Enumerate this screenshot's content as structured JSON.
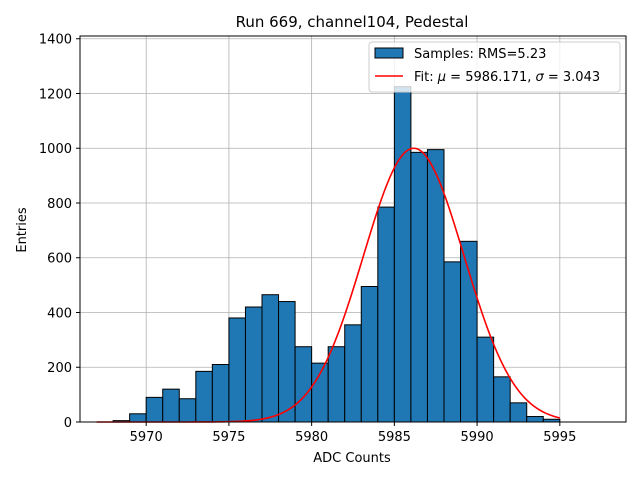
{
  "chart_data": {
    "type": "bar",
    "title": "Run 669, channel104, Pedestal",
    "xlabel": "ADC Counts",
    "ylabel": "Entries",
    "xlim": [
      5966,
      5999
    ],
    "ylim": [
      0,
      1410
    ],
    "x_ticks": [
      "5970",
      "5975",
      "5980",
      "5985",
      "5990",
      "5995"
    ],
    "y_ticks": [
      "0",
      "200",
      "400",
      "600",
      "800",
      "1000",
      "1200",
      "1400"
    ],
    "grid": true,
    "legend_position": "top-right",
    "bin_edges": [
      5967,
      5968,
      5969,
      5970,
      5971,
      5972,
      5973,
      5974,
      5975,
      5976,
      5977,
      5978,
      5979,
      5980,
      5981,
      5982,
      5983,
      5984,
      5985,
      5986,
      5987,
      5988,
      5989,
      5990,
      5991,
      5992,
      5993,
      5994,
      5995,
      5996,
      5997,
      5998
    ],
    "series": [
      {
        "name": "Samples: RMS=5.23",
        "type": "histogram",
        "color": "#1f77b4",
        "values": [
          0,
          5,
          30,
          90,
          120,
          85,
          185,
          210,
          380,
          420,
          465,
          440,
          275,
          215,
          275,
          355,
          495,
          785,
          1225,
          985,
          995,
          585,
          660,
          310,
          165,
          70,
          20,
          10,
          0,
          0,
          0
        ]
      },
      {
        "name": "Fit: μ = 5986.171, σ = 3.043",
        "type": "line",
        "color": "#ff0000",
        "mu": 5986.171,
        "sigma": 3.043,
        "amplitude": 1000,
        "x_range": [
          5967,
          5995
        ]
      }
    ],
    "legend": [
      {
        "label_prefix": "Samples: RMS=5.23"
      },
      {
        "label_prefix": "Fit: ",
        "mu_symbol": "μ",
        "mu_text": " = 5986.171, ",
        "sigma_symbol": "σ",
        "sigma_text": " = 3.043"
      }
    ]
  }
}
